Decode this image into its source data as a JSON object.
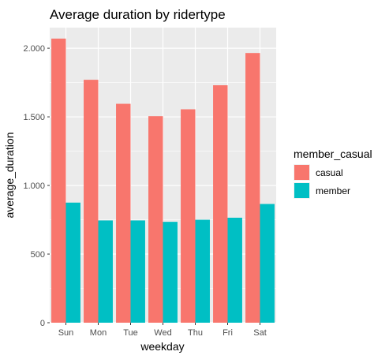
{
  "chart_data": {
    "type": "bar",
    "title": "Average duration by ridertype",
    "xlabel": "weekday",
    "ylabel": "average_duration",
    "categories": [
      "Sun",
      "Mon",
      "Tue",
      "Wed",
      "Thu",
      "Fri",
      "Sat"
    ],
    "series": [
      {
        "name": "casual",
        "color": "#F8766D",
        "values": [
          2070,
          1770,
          1595,
          1505,
          1555,
          1730,
          1965
        ]
      },
      {
        "name": "member",
        "color": "#00BFC4",
        "values": [
          875,
          745,
          745,
          735,
          750,
          765,
          865
        ]
      }
    ],
    "ylim": [
      0,
      2150
    ],
    "yticks": [
      0,
      500,
      1000,
      1500,
      2000
    ],
    "ytick_labels": [
      "0",
      "500",
      "1.000",
      "1.500",
      "2.000"
    ],
    "legend": {
      "title": "member_casual",
      "position": "right"
    },
    "grid": true
  }
}
